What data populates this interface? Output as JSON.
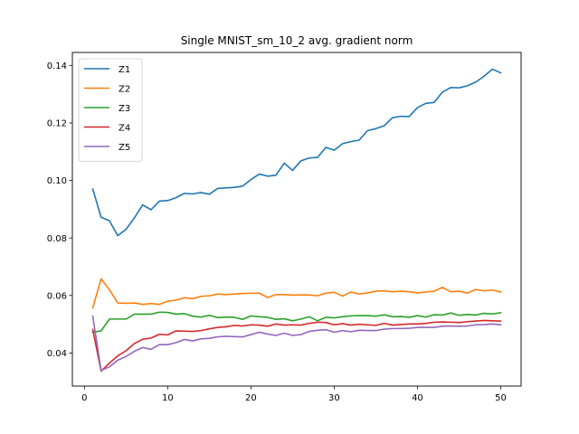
{
  "chart_data": {
    "type": "line",
    "title": "Single MNIST_sm_10_2 avg. gradient norm",
    "xlabel": "",
    "ylabel": "",
    "xlim": [
      -1.45,
      52.45
    ],
    "ylim": [
      0.0285,
      0.1445
    ],
    "x_ticks": [
      0,
      10,
      20,
      30,
      40,
      50
    ],
    "y_ticks": [
      0.04,
      0.06,
      0.08,
      0.1,
      0.12,
      0.14
    ],
    "y_tick_labels": [
      "0.04",
      "0.06",
      "0.08",
      "0.10",
      "0.12",
      "0.14"
    ],
    "legend_position": "upper-left",
    "grid": false,
    "x": [
      1,
      2,
      3,
      4,
      5,
      6,
      7,
      8,
      9,
      10,
      11,
      12,
      13,
      14,
      15,
      16,
      17,
      18,
      19,
      20,
      21,
      22,
      23,
      24,
      25,
      26,
      27,
      28,
      29,
      30,
      31,
      32,
      33,
      34,
      35,
      36,
      37,
      38,
      39,
      40,
      41,
      42,
      43,
      44,
      45,
      46,
      47,
      48,
      49,
      50
    ],
    "series": [
      {
        "name": "Z1",
        "color": "#1f77b4",
        "values": [
          0.097,
          0.0872,
          0.086,
          0.0808,
          0.083,
          0.087,
          0.0915,
          0.0898,
          0.0928,
          0.093,
          0.094,
          0.0955,
          0.0953,
          0.0958,
          0.0952,
          0.0972,
          0.0974,
          0.0976,
          0.098,
          0.1003,
          0.1022,
          0.1015,
          0.1018,
          0.106,
          0.1035,
          0.1068,
          0.1078,
          0.108,
          0.1115,
          0.1105,
          0.1128,
          0.1135,
          0.114,
          0.1173,
          0.118,
          0.119,
          0.1218,
          0.1223,
          0.1222,
          0.1253,
          0.1268,
          0.1271,
          0.1307,
          0.1323,
          0.1322,
          0.1329,
          0.1342,
          0.1362,
          0.1387,
          0.1374
        ]
      },
      {
        "name": "Z2",
        "color": "#ff7f0e",
        "values": [
          0.0557,
          0.0658,
          0.062,
          0.0574,
          0.0573,
          0.0574,
          0.0569,
          0.0572,
          0.0569,
          0.058,
          0.0584,
          0.0592,
          0.0589,
          0.0597,
          0.0599,
          0.0605,
          0.0603,
          0.0605,
          0.0607,
          0.0608,
          0.0608,
          0.0593,
          0.0603,
          0.0603,
          0.0601,
          0.0602,
          0.0602,
          0.0599,
          0.0608,
          0.0611,
          0.0598,
          0.0612,
          0.0605,
          0.0609,
          0.0615,
          0.0616,
          0.0613,
          0.0615,
          0.0613,
          0.0609,
          0.0612,
          0.0615,
          0.0628,
          0.0613,
          0.0615,
          0.0608,
          0.0621,
          0.0616,
          0.0619,
          0.0612
        ]
      },
      {
        "name": "Z3",
        "color": "#2ca02c",
        "values": [
          0.0472,
          0.0477,
          0.0518,
          0.0518,
          0.0518,
          0.0535,
          0.0535,
          0.0535,
          0.0542,
          0.0541,
          0.0535,
          0.0537,
          0.0528,
          0.0525,
          0.0531,
          0.0523,
          0.0525,
          0.0524,
          0.0517,
          0.0529,
          0.0526,
          0.0524,
          0.0517,
          0.0519,
          0.0512,
          0.0518,
          0.0526,
          0.0512,
          0.0524,
          0.0522,
          0.0526,
          0.0529,
          0.053,
          0.053,
          0.0528,
          0.0533,
          0.0526,
          0.0527,
          0.0524,
          0.053,
          0.0525,
          0.0533,
          0.0532,
          0.0539,
          0.0531,
          0.0534,
          0.0532,
          0.0538,
          0.0536,
          0.054
        ]
      },
      {
        "name": "Z4",
        "color": "#d62728",
        "values": [
          0.0482,
          0.0337,
          0.0365,
          0.039,
          0.0408,
          0.0433,
          0.0448,
          0.0452,
          0.0465,
          0.0463,
          0.0477,
          0.0476,
          0.0475,
          0.0478,
          0.0484,
          0.0489,
          0.0491,
          0.0496,
          0.0494,
          0.0498,
          0.0497,
          0.0493,
          0.0501,
          0.0497,
          0.0498,
          0.0497,
          0.0503,
          0.0507,
          0.0506,
          0.0498,
          0.0502,
          0.0497,
          0.05,
          0.0498,
          0.0496,
          0.0503,
          0.0497,
          0.0499,
          0.0501,
          0.0501,
          0.0503,
          0.0507,
          0.0508,
          0.0507,
          0.0506,
          0.0509,
          0.0511,
          0.0513,
          0.0512,
          0.0511
        ]
      },
      {
        "name": "Z5",
        "color": "#9467bd",
        "values": [
          0.0528,
          0.0339,
          0.0352,
          0.0375,
          0.0388,
          0.0406,
          0.0419,
          0.0413,
          0.0429,
          0.0429,
          0.0436,
          0.0447,
          0.0442,
          0.0449,
          0.0451,
          0.0456,
          0.0458,
          0.0457,
          0.0456,
          0.0464,
          0.0472,
          0.0466,
          0.0461,
          0.0469,
          0.0461,
          0.0464,
          0.0475,
          0.0479,
          0.0481,
          0.0472,
          0.0478,
          0.0474,
          0.0479,
          0.0478,
          0.0478,
          0.0483,
          0.0485,
          0.0485,
          0.0486,
          0.0489,
          0.0489,
          0.0489,
          0.0493,
          0.0494,
          0.0493,
          0.0494,
          0.0498,
          0.0499,
          0.0501,
          0.0498
        ]
      }
    ]
  }
}
